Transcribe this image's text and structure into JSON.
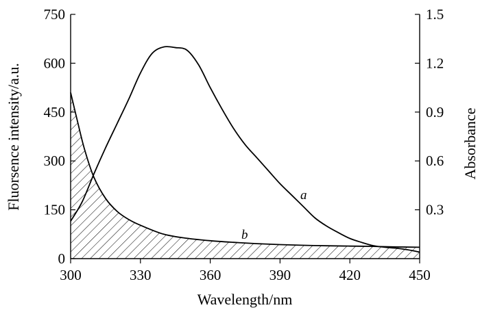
{
  "chart_data": {
    "type": "line",
    "title": "",
    "xlabel": "Wavelength/nm",
    "ylabel_left": "Fluorsence intensity/a.u.",
    "ylabel_right": "Absorbance",
    "xlim": [
      300,
      450
    ],
    "ylim_left": [
      0,
      750
    ],
    "ylim_right": [
      0,
      1.5
    ],
    "x_ticks": [
      "300",
      "330",
      "360",
      "390",
      "420",
      "450"
    ],
    "y_left_ticks": [
      "0",
      "150",
      "300",
      "450",
      "600",
      "750"
    ],
    "y_right_ticks": [
      "0.3",
      "0.6",
      "0.9",
      "1.2",
      "1.5"
    ],
    "grid": false,
    "series": [
      {
        "name": "a",
        "axis": "left",
        "x": [
          300,
          305,
          310,
          315,
          320,
          325,
          330,
          335,
          340,
          345,
          350,
          355,
          360,
          365,
          370,
          375,
          380,
          385,
          390,
          395,
          400,
          405,
          410,
          415,
          420,
          425,
          430,
          435,
          440,
          445,
          450
        ],
        "y": [
          115,
          175,
          260,
          340,
          415,
          490,
          570,
          630,
          650,
          648,
          640,
          595,
          525,
          460,
          400,
          350,
          310,
          270,
          230,
          195,
          160,
          125,
          100,
          80,
          62,
          50,
          40,
          35,
          32,
          27,
          20
        ]
      },
      {
        "name": "b",
        "axis": "right",
        "filled": true,
        "x": [
          300,
          303,
          306,
          310,
          315,
          320,
          325,
          330,
          340,
          350,
          360,
          370,
          380,
          390,
          400,
          410,
          420,
          430,
          440,
          450
        ],
        "y": [
          1.02,
          0.84,
          0.67,
          0.5,
          0.37,
          0.29,
          0.24,
          0.205,
          0.15,
          0.125,
          0.11,
          0.1,
          0.092,
          0.086,
          0.082,
          0.079,
          0.077,
          0.075,
          0.072,
          0.07
        ]
      }
    ]
  }
}
